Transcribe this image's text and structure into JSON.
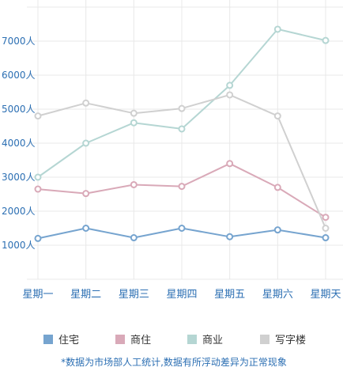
{
  "chart_data": {
    "type": "line",
    "categories": [
      "星期一",
      "星期二",
      "星期三",
      "星期四",
      "星期五",
      "星期六",
      "星期天"
    ],
    "y_ticks": [
      "1000人",
      "2000人",
      "3000人",
      "4000人",
      "5000人",
      "6000人",
      "7000人"
    ],
    "y_tick_values": [
      1000,
      2000,
      3000,
      4000,
      5000,
      6000,
      7000
    ],
    "ylim": [
      0,
      8000
    ],
    "grid": true,
    "legend_placement": "bottom",
    "series": [
      {
        "name": "住宅",
        "color": "#76a4cf",
        "values": [
          1200,
          1500,
          1220,
          1500,
          1250,
          1450,
          1220
        ]
      },
      {
        "name": "商住",
        "color": "#d9a9b8",
        "values": [
          2650,
          2520,
          2780,
          2730,
          3400,
          2700,
          1820
        ]
      },
      {
        "name": "商业",
        "color": "#b5d6d3",
        "values": [
          3000,
          4000,
          4600,
          4420,
          5700,
          7350,
          7020
        ]
      },
      {
        "name": "写字楼",
        "color": "#d0d0d0",
        "values": [
          4800,
          5180,
          4880,
          5020,
          5420,
          4800,
          1500
        ]
      }
    ],
    "note": "*数据为市场部人工统计,数据有所浮动差异为正常现象"
  }
}
